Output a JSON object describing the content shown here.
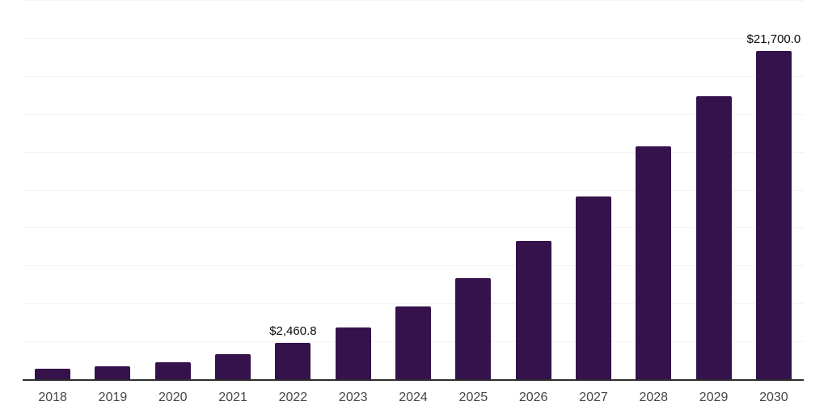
{
  "chart_data": {
    "type": "bar",
    "title": "",
    "xlabel": "",
    "ylabel": "",
    "categories": [
      "2018",
      "2019",
      "2020",
      "2021",
      "2022",
      "2023",
      "2024",
      "2025",
      "2026",
      "2027",
      "2028",
      "2029",
      "2030"
    ],
    "values": [
      750,
      920,
      1190,
      1720,
      2460.8,
      3460,
      4840,
      6720,
      9150,
      12080,
      15400,
      18710,
      21700
    ],
    "value_labels": [
      "",
      "",
      "",
      "",
      "$2,460.8",
      "",
      "",
      "",
      "",
      "",
      "",
      "",
      "$21,700.0"
    ],
    "ylim": [
      0,
      25000
    ],
    "grid_step": 2500,
    "grid": true,
    "legend": false,
    "colors": {
      "bar": "#35124B",
      "axis": "#2E2E2E",
      "gridline": "#F4F4F4",
      "tick_label": "#454545",
      "value_label": "#0A0A0A",
      "background": "#FFFFFF"
    }
  }
}
